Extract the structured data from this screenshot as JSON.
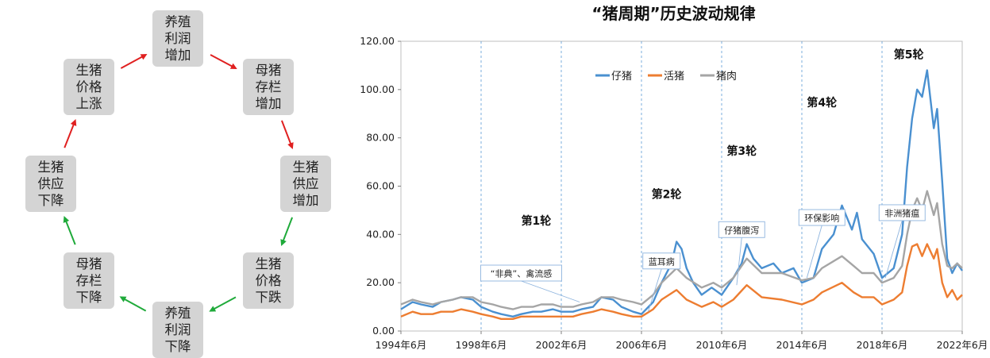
{
  "cycle_diagram": {
    "nodes": [
      {
        "id": "breeding-profit-up",
        "label": "养殖\n利润\n增加"
      },
      {
        "id": "sow-stock-up",
        "label": "母猪\n存栏\n增加"
      },
      {
        "id": "hog-supply-up",
        "label": "生猪\n供应\n增加"
      },
      {
        "id": "hog-price-down",
        "label": "生猪\n价格\n下跌"
      },
      {
        "id": "breeding-profit-down",
        "label": "养殖\n利润\n下降"
      },
      {
        "id": "sow-stock-down",
        "label": "母猪\n存栏\n下降"
      },
      {
        "id": "hog-supply-down",
        "label": "生猪\n供应\n下降"
      },
      {
        "id": "hog-price-up",
        "label": "生猪\n价格\n上涨"
      }
    ],
    "edges": [
      {
        "from": "breeding-profit-up",
        "to": "sow-stock-up",
        "color": "#e02020"
      },
      {
        "from": "sow-stock-up",
        "to": "hog-supply-up",
        "color": "#e02020"
      },
      {
        "from": "hog-supply-up",
        "to": "hog-price-down",
        "color": "#1faa3a"
      },
      {
        "from": "hog-price-down",
        "to": "breeding-profit-down",
        "color": "#1faa3a"
      },
      {
        "from": "breeding-profit-down",
        "to": "sow-stock-down",
        "color": "#1faa3a"
      },
      {
        "from": "sow-stock-down",
        "to": "hog-supply-down",
        "color": "#1faa3a"
      },
      {
        "from": "hog-supply-down",
        "to": "hog-price-up",
        "color": "#e02020"
      },
      {
        "from": "hog-price-up",
        "to": "breeding-profit-up",
        "color": "#e02020"
      }
    ]
  },
  "chart_data": {
    "type": "line",
    "title": "“猪周期”历史波动规律",
    "xlabel": "",
    "ylabel": "",
    "x_range": [
      "1994-06",
      "2022-06"
    ],
    "xticks": [
      "1994年6月",
      "1998年6月",
      "2002年6月",
      "2006年6月",
      "2010年6月",
      "2014年6月",
      "2018年6月",
      "2022年6月"
    ],
    "ylim": [
      0,
      120
    ],
    "yticks": [
      "0.00",
      "20.00",
      "40.00",
      "60.00",
      "80.00",
      "100.00",
      "120.00"
    ],
    "grid": "vertical-dashed",
    "legend_position": "top-left",
    "colors": {
      "仔猪": "#4a90d0",
      "活猪": "#ed7d31",
      "猪肉": "#a5a5a5"
    },
    "series": [
      {
        "name": "仔猪",
        "points": [
          [
            "1994-06",
            9
          ],
          [
            "1995-01",
            12
          ],
          [
            "1995-06",
            11
          ],
          [
            "1996-01",
            10
          ],
          [
            "1996-06",
            12
          ],
          [
            "1997-01",
            13
          ],
          [
            "1997-06",
            14
          ],
          [
            "1998-01",
            13
          ],
          [
            "1998-06",
            10
          ],
          [
            "1999-01",
            8
          ],
          [
            "1999-06",
            7
          ],
          [
            "2000-01",
            6
          ],
          [
            "2000-06",
            7
          ],
          [
            "2001-01",
            8
          ],
          [
            "2001-06",
            8
          ],
          [
            "2002-01",
            9
          ],
          [
            "2002-06",
            8
          ],
          [
            "2003-01",
            8
          ],
          [
            "2003-06",
            9
          ],
          [
            "2004-01",
            10
          ],
          [
            "2004-06",
            14
          ],
          [
            "2005-01",
            13
          ],
          [
            "2005-06",
            10
          ],
          [
            "2006-01",
            8
          ],
          [
            "2006-06",
            7
          ],
          [
            "2007-01",
            12
          ],
          [
            "2007-06",
            20
          ],
          [
            "2007-12",
            28
          ],
          [
            "2008-03",
            37
          ],
          [
            "2008-06",
            34
          ],
          [
            "2008-09",
            26
          ],
          [
            "2009-01",
            20
          ],
          [
            "2009-06",
            15
          ],
          [
            "2009-12",
            18
          ],
          [
            "2010-06",
            15
          ],
          [
            "2011-01",
            22
          ],
          [
            "2011-06",
            28
          ],
          [
            "2011-09",
            36
          ],
          [
            "2012-01",
            30
          ],
          [
            "2012-06",
            26
          ],
          [
            "2013-01",
            28
          ],
          [
            "2013-06",
            24
          ],
          [
            "2014-01",
            26
          ],
          [
            "2014-06",
            20
          ],
          [
            "2015-01",
            22
          ],
          [
            "2015-06",
            34
          ],
          [
            "2016-01",
            40
          ],
          [
            "2016-06",
            52
          ],
          [
            "2016-12",
            42
          ],
          [
            "2017-03",
            49
          ],
          [
            "2017-06",
            38
          ],
          [
            "2018-01",
            32
          ],
          [
            "2018-06",
            22
          ],
          [
            "2019-01",
            26
          ],
          [
            "2019-06",
            40
          ],
          [
            "2019-09",
            68
          ],
          [
            "2019-12",
            88
          ],
          [
            "2020-03",
            100
          ],
          [
            "2020-06",
            97
          ],
          [
            "2020-09",
            108
          ],
          [
            "2021-01",
            84
          ],
          [
            "2021-03",
            92
          ],
          [
            "2021-06",
            62
          ],
          [
            "2021-09",
            30
          ],
          [
            "2021-12",
            24
          ],
          [
            "2022-03",
            28
          ],
          [
            "2022-06",
            25
          ]
        ]
      },
      {
        "name": "活猪",
        "points": [
          [
            "1994-06",
            6
          ],
          [
            "1995-01",
            8
          ],
          [
            "1995-06",
            7
          ],
          [
            "1996-01",
            7
          ],
          [
            "1996-06",
            8
          ],
          [
            "1997-01",
            8
          ],
          [
            "1997-06",
            9
          ],
          [
            "1998-01",
            8
          ],
          [
            "1998-06",
            7
          ],
          [
            "1999-01",
            6
          ],
          [
            "1999-06",
            5
          ],
          [
            "2000-01",
            5
          ],
          [
            "2000-06",
            6
          ],
          [
            "2001-01",
            6
          ],
          [
            "2001-06",
            6
          ],
          [
            "2002-01",
            6
          ],
          [
            "2002-06",
            6
          ],
          [
            "2003-01",
            6
          ],
          [
            "2003-06",
            7
          ],
          [
            "2004-01",
            8
          ],
          [
            "2004-06",
            9
          ],
          [
            "2005-01",
            8
          ],
          [
            "2005-06",
            7
          ],
          [
            "2006-01",
            6
          ],
          [
            "2006-06",
            6
          ],
          [
            "2007-01",
            9
          ],
          [
            "2007-06",
            13
          ],
          [
            "2008-03",
            17
          ],
          [
            "2008-09",
            13
          ],
          [
            "2009-06",
            10
          ],
          [
            "2010-01",
            12
          ],
          [
            "2010-06",
            10
          ],
          [
            "2011-01",
            13
          ],
          [
            "2011-09",
            19
          ],
          [
            "2012-06",
            14
          ],
          [
            "2013-06",
            13
          ],
          [
            "2014-06",
            11
          ],
          [
            "2015-01",
            13
          ],
          [
            "2015-06",
            16
          ],
          [
            "2016-06",
            20
          ],
          [
            "2017-01",
            16
          ],
          [
            "2017-06",
            14
          ],
          [
            "2018-01",
            14
          ],
          [
            "2018-06",
            11
          ],
          [
            "2019-01",
            13
          ],
          [
            "2019-06",
            16
          ],
          [
            "2019-09",
            27
          ],
          [
            "2019-12",
            35
          ],
          [
            "2020-03",
            36
          ],
          [
            "2020-06",
            31
          ],
          [
            "2020-09",
            36
          ],
          [
            "2021-01",
            30
          ],
          [
            "2021-03",
            34
          ],
          [
            "2021-06",
            20
          ],
          [
            "2021-09",
            14
          ],
          [
            "2021-12",
            17
          ],
          [
            "2022-03",
            13
          ],
          [
            "2022-06",
            15
          ]
        ]
      },
      {
        "name": "猪肉",
        "points": [
          [
            "1994-06",
            11
          ],
          [
            "1995-01",
            13
          ],
          [
            "1995-06",
            12
          ],
          [
            "1996-01",
            11
          ],
          [
            "1996-06",
            12
          ],
          [
            "1997-01",
            13
          ],
          [
            "1997-06",
            14
          ],
          [
            "1998-01",
            14
          ],
          [
            "1998-06",
            12
          ],
          [
            "1999-01",
            11
          ],
          [
            "1999-06",
            10
          ],
          [
            "2000-01",
            9
          ],
          [
            "2000-06",
            10
          ],
          [
            "2001-01",
            10
          ],
          [
            "2001-06",
            11
          ],
          [
            "2002-01",
            11
          ],
          [
            "2002-06",
            10
          ],
          [
            "2003-01",
            10
          ],
          [
            "2003-06",
            11
          ],
          [
            "2004-01",
            12
          ],
          [
            "2004-06",
            14
          ],
          [
            "2005-01",
            14
          ],
          [
            "2005-06",
            13
          ],
          [
            "2006-01",
            12
          ],
          [
            "2006-06",
            11
          ],
          [
            "2007-01",
            15
          ],
          [
            "2007-06",
            20
          ],
          [
            "2008-03",
            26
          ],
          [
            "2008-09",
            22
          ],
          [
            "2009-06",
            18
          ],
          [
            "2010-01",
            20
          ],
          [
            "2010-06",
            18
          ],
          [
            "2011-01",
            22
          ],
          [
            "2011-09",
            30
          ],
          [
            "2012-06",
            24
          ],
          [
            "2013-06",
            24
          ],
          [
            "2014-06",
            21
          ],
          [
            "2015-01",
            22
          ],
          [
            "2015-06",
            26
          ],
          [
            "2016-06",
            31
          ],
          [
            "2017-01",
            27
          ],
          [
            "2017-06",
            24
          ],
          [
            "2018-01",
            24
          ],
          [
            "2018-06",
            20
          ],
          [
            "2019-01",
            22
          ],
          [
            "2019-06",
            27
          ],
          [
            "2019-09",
            40
          ],
          [
            "2019-12",
            50
          ],
          [
            "2020-03",
            55
          ],
          [
            "2020-06",
            50
          ],
          [
            "2020-09",
            58
          ],
          [
            "2021-01",
            48
          ],
          [
            "2021-03",
            53
          ],
          [
            "2021-06",
            36
          ],
          [
            "2021-09",
            27
          ],
          [
            "2021-12",
            26
          ],
          [
            "2022-03",
            28
          ],
          [
            "2022-06",
            26
          ]
        ]
      }
    ],
    "cycle_labels": [
      {
        "text": "第1轮",
        "x": "2001-03",
        "y": 44
      },
      {
        "text": "第2轮",
        "x": "2007-09",
        "y": 55
      },
      {
        "text": "第3轮",
        "x": "2011-06",
        "y": 73
      },
      {
        "text": "第4轮",
        "x": "2015-06",
        "y": 93
      },
      {
        "text": "第5轮",
        "x": "2019-10",
        "y": 113
      }
    ],
    "annotations": [
      {
        "text": "“非典”、禽流感",
        "box_x": "2000-06",
        "box_y": 24,
        "point_x": "2003-05",
        "point_y": 12
      },
      {
        "text": "蓝耳病",
        "box_x": "2007-06",
        "box_y": 29,
        "point_x": "2006-10",
        "point_y": 8
      },
      {
        "text": "仔猪腹泻",
        "box_x": "2011-06",
        "box_y": 42,
        "point_x": "2011-03",
        "point_y": 19
      },
      {
        "text": "环保影响",
        "box_x": "2015-06",
        "box_y": 47,
        "point_x": "2014-09",
        "point_y": 22
      },
      {
        "text": "非洲猪瘟",
        "box_x": "2019-06",
        "box_y": 49,
        "point_x": "2018-08",
        "point_y": 22
      }
    ]
  }
}
